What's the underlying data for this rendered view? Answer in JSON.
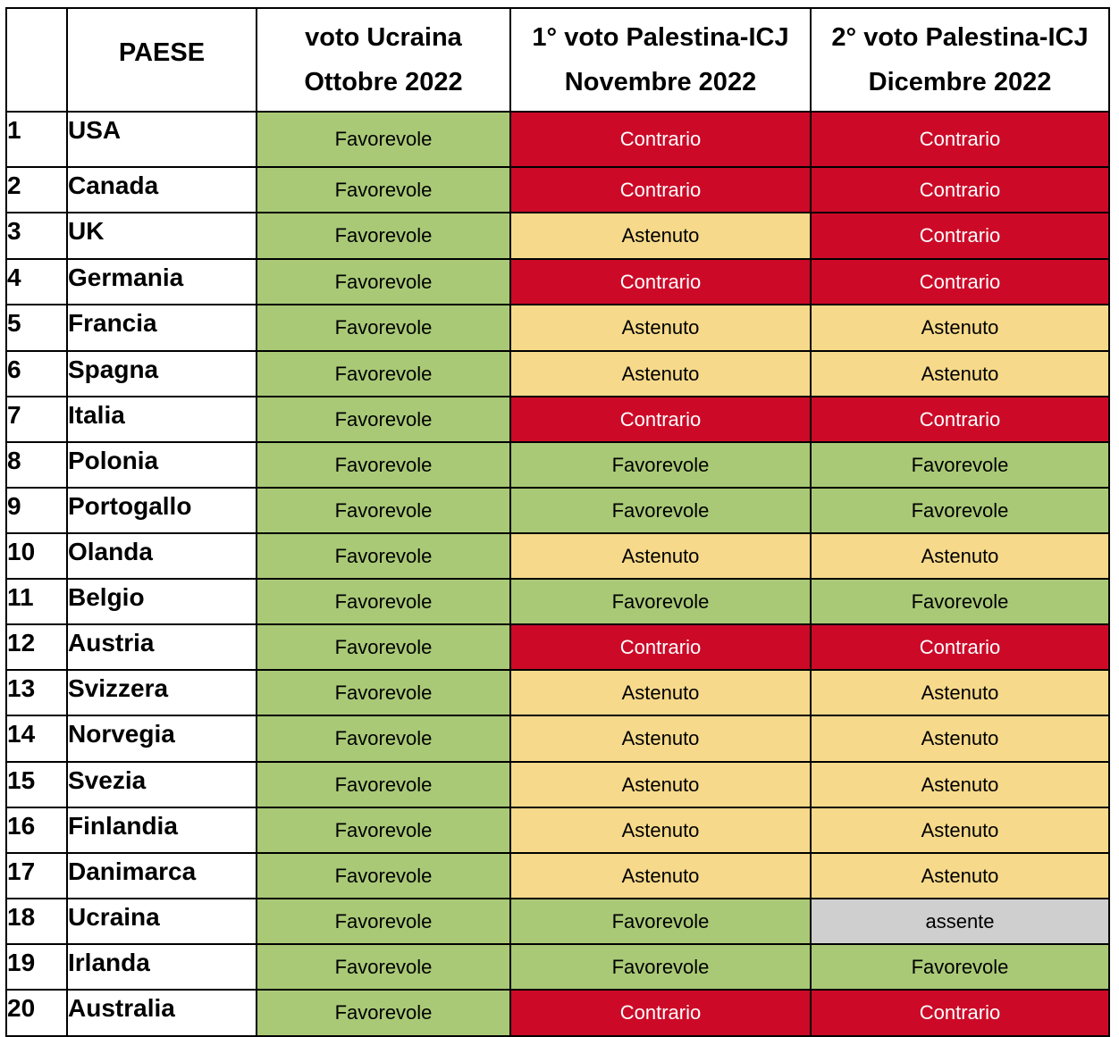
{
  "headers": {
    "number": "",
    "country": "PAESE",
    "col1": [
      "voto Ucraina",
      "Ottobre 2022"
    ],
    "col2": [
      "1° voto Palestina-ICJ",
      "Novembre 2022"
    ],
    "col3": [
      "2° voto Palestina-ICJ",
      "Dicembre 2022"
    ]
  },
  "colors": {
    "favorevole": "#a9c976",
    "contrario": "#cc0a28",
    "astenuto": "#f6d98a",
    "assente": "#d0cfcf"
  },
  "rows": [
    {
      "num": "1",
      "country": "USA",
      "v1": "Favorevole",
      "v2": "Contrario",
      "v3": "Contrario"
    },
    {
      "num": "2",
      "country": "Canada",
      "v1": "Favorevole",
      "v2": "Contrario",
      "v3": "Contrario"
    },
    {
      "num": "3",
      "country": "UK",
      "v1": "Favorevole",
      "v2": "Astenuto",
      "v3": "Contrario"
    },
    {
      "num": "4",
      "country": "Germania",
      "v1": "Favorevole",
      "v2": "Contrario",
      "v3": "Contrario"
    },
    {
      "num": "5",
      "country": "Francia",
      "v1": "Favorevole",
      "v2": "Astenuto",
      "v3": "Astenuto"
    },
    {
      "num": "6",
      "country": "Spagna",
      "v1": "Favorevole",
      "v2": "Astenuto",
      "v3": "Astenuto"
    },
    {
      "num": "7",
      "country": "Italia",
      "v1": "Favorevole",
      "v2": "Contrario",
      "v3": "Contrario"
    },
    {
      "num": "8",
      "country": "Polonia",
      "v1": "Favorevole",
      "v2": "Favorevole",
      "v3": "Favorevole"
    },
    {
      "num": "9",
      "country": "Portogallo",
      "v1": "Favorevole",
      "v2": "Favorevole",
      "v3": "Favorevole"
    },
    {
      "num": "10",
      "country": "Olanda",
      "v1": "Favorevole",
      "v2": "Astenuto",
      "v3": "Astenuto"
    },
    {
      "num": "11",
      "country": "Belgio",
      "v1": "Favorevole",
      "v2": "Favorevole",
      "v3": "Favorevole"
    },
    {
      "num": "12",
      "country": "Austria",
      "v1": "Favorevole",
      "v2": "Contrario",
      "v3": "Contrario"
    },
    {
      "num": "13",
      "country": "Svizzera",
      "v1": "Favorevole",
      "v2": "Astenuto",
      "v3": "Astenuto"
    },
    {
      "num": "14",
      "country": "Norvegia",
      "v1": "Favorevole",
      "v2": "Astenuto",
      "v3": "Astenuto"
    },
    {
      "num": "15",
      "country": "Svezia",
      "v1": "Favorevole",
      "v2": "Astenuto",
      "v3": "Astenuto"
    },
    {
      "num": "16",
      "country": "Finlandia",
      "v1": "Favorevole",
      "v2": "Astenuto",
      "v3": "Astenuto"
    },
    {
      "num": "17",
      "country": "Danimarca",
      "v1": "Favorevole",
      "v2": "Astenuto",
      "v3": "Astenuto"
    },
    {
      "num": "18",
      "country": "Ucraina",
      "v1": "Favorevole",
      "v2": "Favorevole",
      "v3": "assente"
    },
    {
      "num": "19",
      "country": "Irlanda",
      "v1": "Favorevole",
      "v2": "Favorevole",
      "v3": "Favorevole"
    },
    {
      "num": "20",
      "country": "Australia",
      "v1": "Favorevole",
      "v2": "Contrario",
      "v3": "Contrario"
    }
  ]
}
